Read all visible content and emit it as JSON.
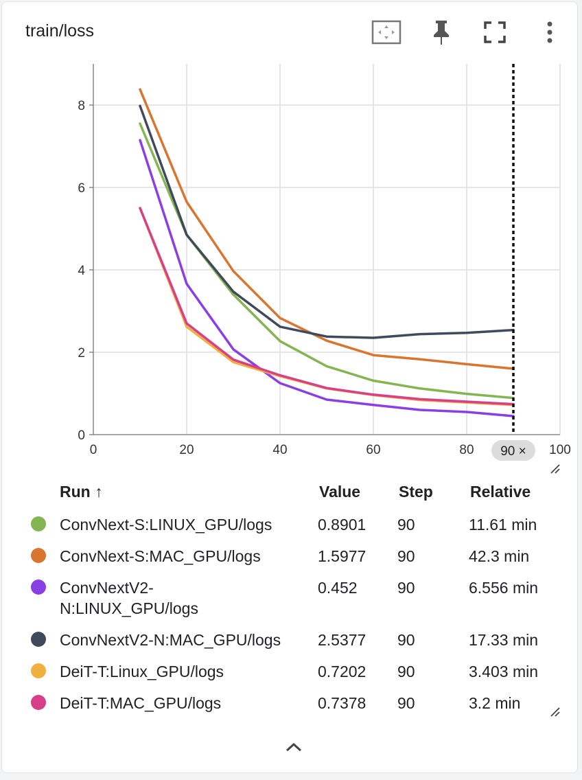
{
  "card": {
    "title": "train/loss"
  },
  "toolbar": {
    "fit_icon": "fit-domain-icon",
    "pin_icon": "pin-icon",
    "fullscreen_icon": "fullscreen-icon",
    "more_icon": "more-vert-icon"
  },
  "chart_data": {
    "type": "line",
    "title": "train/loss",
    "xlabel": "",
    "ylabel": "",
    "xlim": [
      0,
      100
    ],
    "ylim": [
      0,
      9
    ],
    "xticks": [
      "0",
      "20",
      "40",
      "60",
      "80",
      "100"
    ],
    "yticks": [
      "0",
      "2",
      "4",
      "6",
      "8"
    ],
    "grid": true,
    "hover_step": 90,
    "hover_label": "90 ×",
    "x": [
      10,
      20,
      30,
      40,
      50,
      60,
      70,
      80,
      90
    ],
    "series": [
      {
        "name": "ConvNext-S:LINUX_GPU/logs",
        "color": "#84b552",
        "values": [
          7.55,
          4.85,
          3.4,
          2.27,
          1.66,
          1.31,
          1.12,
          0.99,
          0.89
        ]
      },
      {
        "name": "ConvNext-S:MAC_GPU/logs",
        "color": "#d9752f",
        "values": [
          8.38,
          5.65,
          3.97,
          2.83,
          2.28,
          1.93,
          1.83,
          1.71,
          1.6
        ]
      },
      {
        "name": "ConvNextV2-N:LINUX_GPU/logs",
        "color": "#8a3ee6",
        "values": [
          7.15,
          3.66,
          2.07,
          1.25,
          0.85,
          0.72,
          0.6,
          0.55,
          0.45
        ]
      },
      {
        "name": "ConvNextV2-N:MAC_GPU/logs",
        "color": "#3f4a5c",
        "values": [
          7.98,
          4.85,
          3.47,
          2.62,
          2.38,
          2.35,
          2.44,
          2.47,
          2.54
        ]
      },
      {
        "name": "DeiT-T:Linux_GPU/logs",
        "color": "#f0b040",
        "values": [
          5.5,
          2.62,
          1.76,
          1.42,
          1.12,
          0.96,
          0.84,
          0.78,
          0.72
        ]
      },
      {
        "name": "DeiT-T:MAC_GPU/logs",
        "color": "#d83f8a",
        "values": [
          5.5,
          2.7,
          1.82,
          1.44,
          1.13,
          0.97,
          0.86,
          0.8,
          0.74
        ]
      }
    ]
  },
  "table": {
    "headers": {
      "run": "Run ↑",
      "value": "Value",
      "step": "Step",
      "relative": "Relative"
    },
    "rows": [
      {
        "name": "ConvNext-S:LINUX_GPU/logs",
        "color": "#84b552",
        "value": "0.8901",
        "step": "90",
        "relative": "11.61 min"
      },
      {
        "name": "ConvNext-S:MAC_GPU/logs",
        "color": "#d9752f",
        "value": "1.5977",
        "step": "90",
        "relative": "42.3 min"
      },
      {
        "name": "ConvNextV2-N:LINUX_GPU/logs",
        "color": "#8a3ee6",
        "value": "0.452",
        "step": "90",
        "relative": "6.556 min"
      },
      {
        "name": "ConvNextV2-N:MAC_GPU/logs",
        "color": "#3f4a5c",
        "value": "2.5377",
        "step": "90",
        "relative": "17.33 min"
      },
      {
        "name": "DeiT-T:Linux_GPU/logs",
        "color": "#f0b040",
        "value": "0.7202",
        "step": "90",
        "relative": "3.403 min"
      },
      {
        "name": "DeiT-T:MAC_GPU/logs",
        "color": "#d83f8a",
        "value": "0.7378",
        "step": "90",
        "relative": "3.2 min"
      }
    ]
  },
  "footer": {
    "collapse_icon": "chevron-up-icon"
  }
}
